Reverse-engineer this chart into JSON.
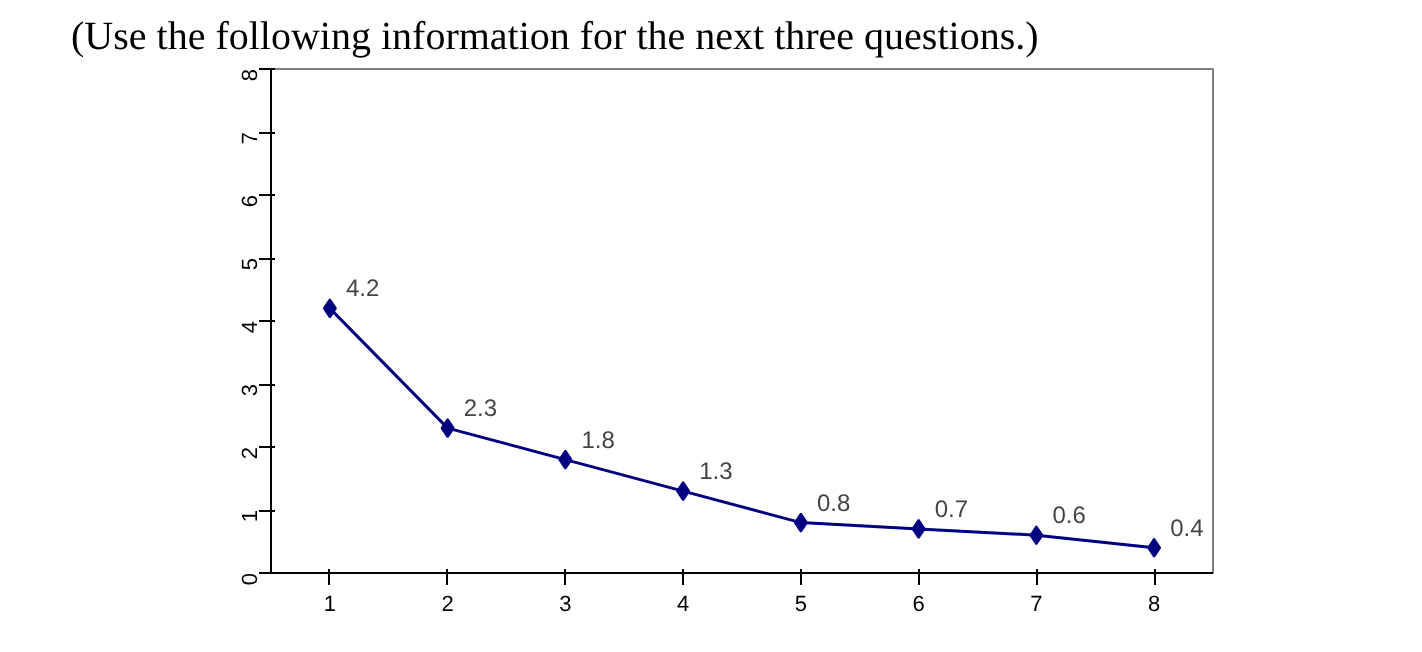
{
  "chart_data": {
    "type": "line",
    "title": "(Use the following information for the next three questions.)",
    "categories": [
      "1",
      "2",
      "3",
      "4",
      "5",
      "6",
      "7",
      "8"
    ],
    "series": [
      {
        "color": "#000080",
        "values": [
          4.2,
          2.3,
          1.8,
          1.3,
          0.8,
          0.7,
          0.6,
          0.4
        ]
      }
    ],
    "ylim": [
      0,
      8
    ],
    "yticks": [
      0,
      1,
      2,
      3,
      4,
      5,
      6,
      7,
      8
    ],
    "marker": "diamond",
    "line_style": "solid",
    "data_labels": true,
    "grid": false
  }
}
